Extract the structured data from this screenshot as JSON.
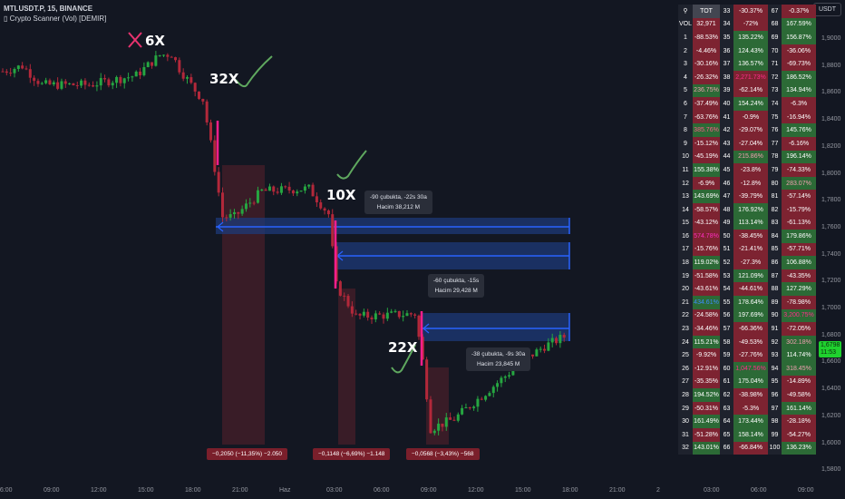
{
  "header": {
    "symbol": "MTLUSDT.P, 15, BINANCE",
    "indicator": "▯ Crypto Scanner (Vol) [DEMIR]"
  },
  "currency_button": "USDT",
  "price_tag": {
    "price": "1,6798",
    "countdown": "11:53",
    "color": "#1fd12e"
  },
  "price_axis": [
    "1,9000",
    "1,8800",
    "1,8600",
    "1,8400",
    "1,8200",
    "1,8000",
    "1,7800",
    "1,7600",
    "1,7400",
    "1,7200",
    "1,7000",
    "1,6800",
    "1,6600",
    "1,6400",
    "1,6200",
    "1,6000",
    "1,5800"
  ],
  "time_axis": [
    "06:00",
    "09:00",
    "12:00",
    "15:00",
    "18:00",
    "21:00",
    "Haz",
    "03:00",
    "06:00",
    "09:00",
    "12:00",
    "15:00",
    "18:00",
    "21:00",
    "2",
    "03:00",
    "06:00",
    "09:00"
  ],
  "annotations": [
    "6X",
    "32X",
    "10X",
    "22X"
  ],
  "tooltips": [
    {
      "line1": "-90 çubukta, -22s 30a",
      "line2": "Hacim 38,212 M"
    },
    {
      "line1": "-60 çubukta, -15s",
      "line2": "Hacim 29,428 M"
    },
    {
      "line1": "-38 çubukta, -9s 30a",
      "line2": "Hacim 23,845 M"
    }
  ],
  "drop_labels": [
    "−0,2050 (−11,35%) −2.050",
    "−0,1148 (−6,69%) −1.148",
    "−0,0568 (−3,43%) −568"
  ],
  "colors": {
    "up": "#26a641",
    "down": "#b2283a",
    "spike": "#ff1e8c",
    "zone": "#1e3a78",
    "zone_line": "#2962ff",
    "cell_red": "#7d2331",
    "cell_green": "#2c6a36"
  },
  "price_path": [
    [
      0,
      1.876
    ],
    [
      5,
      1.88
    ],
    [
      10,
      1.866
    ],
    [
      22,
      1.866
    ],
    [
      34,
      1.873
    ],
    [
      40,
      1.888
    ],
    [
      43,
      1.889
    ],
    [
      45,
      1.878
    ],
    [
      49,
      1.862
    ],
    [
      51,
      1.855
    ],
    [
      53,
      1.822
    ],
    [
      56,
      1.768
    ],
    [
      59,
      1.768
    ],
    [
      66,
      1.787
    ],
    [
      78,
      1.789
    ],
    [
      83,
      1.77
    ],
    [
      85,
      1.717
    ],
    [
      90,
      1.694
    ],
    [
      105,
      1.696
    ],
    [
      107,
      1.661
    ],
    [
      109,
      1.611
    ],
    [
      115,
      1.618
    ],
    [
      124,
      1.64
    ],
    [
      133,
      1.662
    ],
    [
      138,
      1.672
    ],
    [
      143,
      1.679
    ]
  ],
  "scanner": {
    "header": {
      "icon": "scan-icon",
      "tot": "TOT",
      "c2": "33",
      "v2": "-30.37%",
      "c3": "67",
      "v3": "-0.37%"
    },
    "rows": [
      [
        "VOL",
        "32,971",
        "r",
        "",
        "34",
        "-72%",
        "r",
        "",
        "68",
        "167.59%",
        "g",
        ""
      ],
      [
        "1",
        "-88.53%",
        "r",
        "",
        "35",
        "135.22%",
        "g",
        "",
        "69",
        "156.87%",
        "g",
        ""
      ],
      [
        "2",
        "-4.46%",
        "r",
        "",
        "36",
        "124.43%",
        "g",
        "",
        "70",
        "-36.06%",
        "r",
        ""
      ],
      [
        "3",
        "-30.16%",
        "r",
        "",
        "37",
        "136.57%",
        "g",
        "",
        "71",
        "-69.73%",
        "r",
        ""
      ],
      [
        "4",
        "-26.32%",
        "r",
        "",
        "38",
        "2,271.73%",
        "r",
        "#ff2d8a",
        "72",
        "186.52%",
        "g",
        ""
      ],
      [
        "5",
        "236.75%",
        "g",
        "#f0a0b0",
        "39",
        "-62.14%",
        "r",
        "",
        "73",
        "134.94%",
        "g",
        ""
      ],
      [
        "6",
        "-37.49%",
        "r",
        "",
        "40",
        "154.24%",
        "g",
        "",
        "74",
        "-6.3%",
        "r",
        ""
      ],
      [
        "7",
        "-63.76%",
        "r",
        "",
        "41",
        "-0.9%",
        "r",
        "",
        "75",
        "-16.94%",
        "r",
        ""
      ],
      [
        "8",
        "385.76%",
        "g",
        "#ff5c8a",
        "42",
        "-29.07%",
        "r",
        "",
        "76",
        "145.76%",
        "g",
        ""
      ],
      [
        "9",
        "-15.12%",
        "r",
        "",
        "43",
        "-27.04%",
        "r",
        "",
        "77",
        "-6.16%",
        "r",
        ""
      ],
      [
        "10",
        "-45.19%",
        "r",
        "",
        "44",
        "215.86%",
        "g",
        "#f0a0b0",
        "78",
        "196.14%",
        "g",
        ""
      ],
      [
        "11",
        "155.38%",
        "g",
        "",
        "45",
        "-23.8%",
        "r",
        "",
        "79",
        "-74.33%",
        "r",
        ""
      ],
      [
        "12",
        "-6.9%",
        "r",
        "",
        "46",
        "-12.8%",
        "r",
        "",
        "80",
        "283.07%",
        "g",
        "#f0a0b0"
      ],
      [
        "13",
        "143.69%",
        "g",
        "",
        "47",
        "-39.79%",
        "r",
        "",
        "81",
        "-57.14%",
        "r",
        ""
      ],
      [
        "14",
        "-58.57%",
        "r",
        "",
        "48",
        "176.92%",
        "g",
        "",
        "82",
        "-15.79%",
        "r",
        ""
      ],
      [
        "15",
        "-43.12%",
        "r",
        "",
        "49",
        "113.14%",
        "g",
        "",
        "83",
        "-61.13%",
        "r",
        ""
      ],
      [
        "16",
        "574.78%",
        "r",
        "#ff2dc0",
        "50",
        "-38.45%",
        "r",
        "",
        "84",
        "179.86%",
        "g",
        ""
      ],
      [
        "17",
        "-15.76%",
        "r",
        "",
        "51",
        "-21.41%",
        "r",
        "",
        "85",
        "-57.71%",
        "r",
        ""
      ],
      [
        "18",
        "119.02%",
        "g",
        "",
        "52",
        "-27.3%",
        "r",
        "",
        "86",
        "106.88%",
        "g",
        ""
      ],
      [
        "19",
        "-51.58%",
        "r",
        "",
        "53",
        "121.09%",
        "g",
        "",
        "87",
        "-43.35%",
        "r",
        ""
      ],
      [
        "20",
        "-43.61%",
        "r",
        "",
        "54",
        "-44.61%",
        "r",
        "",
        "88",
        "127.29%",
        "g",
        ""
      ],
      [
        "21",
        "434.61%",
        "g",
        "#3d8bff",
        "55",
        "178.64%",
        "g",
        "",
        "89",
        "-78.98%",
        "r",
        ""
      ],
      [
        "22",
        "-24.58%",
        "r",
        "",
        "56",
        "197.69%",
        "g",
        "",
        "90",
        "3,200.75%",
        "g",
        "#ff2d8a"
      ],
      [
        "23",
        "-34.46%",
        "r",
        "",
        "57",
        "-66.36%",
        "r",
        "",
        "91",
        "-72.05%",
        "r",
        ""
      ],
      [
        "24",
        "115.21%",
        "g",
        "",
        "58",
        "-49.53%",
        "r",
        "",
        "92",
        "302.18%",
        "g",
        "#f0a0b0"
      ],
      [
        "25",
        "-9.92%",
        "r",
        "",
        "59",
        "-27.76%",
        "r",
        "",
        "93",
        "114.74%",
        "g",
        ""
      ],
      [
        "26",
        "-12.91%",
        "r",
        "",
        "60",
        "1,047.56%",
        "g",
        "#ff2d8a",
        "94",
        "318.45%",
        "g",
        "#f0a0b0"
      ],
      [
        "27",
        "-35.35%",
        "r",
        "",
        "61",
        "175.04%",
        "g",
        "",
        "95",
        "-14.89%",
        "r",
        ""
      ],
      [
        "28",
        "194.52%",
        "g",
        "",
        "62",
        "-38.98%",
        "r",
        "",
        "96",
        "-49.58%",
        "r",
        ""
      ],
      [
        "29",
        "-50.31%",
        "r",
        "",
        "63",
        "-5.3%",
        "r",
        "",
        "97",
        "161.14%",
        "g",
        ""
      ],
      [
        "30",
        "161.49%",
        "g",
        "",
        "64",
        "173.44%",
        "g",
        "",
        "98",
        "-28.18%",
        "r",
        ""
      ],
      [
        "31",
        "-51.28%",
        "r",
        "",
        "65",
        "158.14%",
        "g",
        "",
        "99",
        "-54.27%",
        "r",
        ""
      ],
      [
        "32",
        "143.01%",
        "g",
        "",
        "66",
        "-66.84%",
        "r",
        "",
        "100",
        "136.23%",
        "g",
        ""
      ]
    ]
  }
}
